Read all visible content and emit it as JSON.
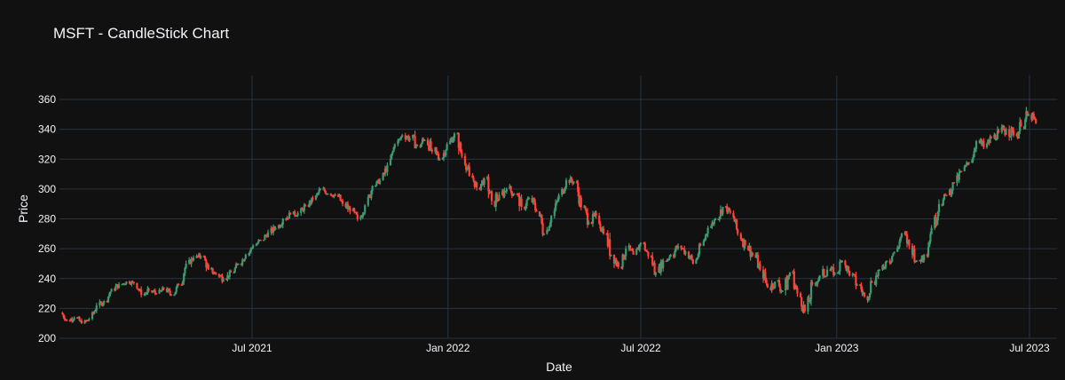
{
  "chart_data": {
    "type": "candlestick",
    "title": "MSFT - CandleStick Chart",
    "xlabel": "Date",
    "ylabel": "Price",
    "ylim": [
      200,
      368
    ],
    "yticks": [
      200,
      220,
      240,
      260,
      280,
      300,
      320,
      340,
      360
    ],
    "xticks": [
      {
        "label": "Jul 2021",
        "date": "2021-07-01"
      },
      {
        "label": "Jan 2022",
        "date": "2022-01-01"
      },
      {
        "label": "Jul 2022",
        "date": "2022-07-01"
      },
      {
        "label": "Jan 2023",
        "date": "2023-01-01"
      },
      {
        "label": "Jul 2023",
        "date": "2023-07-01"
      }
    ],
    "xrange": [
      "2021-01-04",
      "2023-07-28"
    ],
    "grid": true,
    "legend": false,
    "colors": {
      "increasing": "#3D9970",
      "decreasing": "#FF4136",
      "background": "#111111",
      "grid": "#283442",
      "text": "#f2f5fa"
    },
    "weekly_ohlc_note": "Approximate weekly OHLC read from the rendered daily candles",
    "start_week": "2021-01-04",
    "ohlc": [
      [
        217,
        218,
        210,
        212
      ],
      [
        212,
        216,
        209,
        214
      ],
      [
        214,
        216,
        208,
        210
      ],
      [
        210,
        214,
        207,
        213
      ],
      [
        213,
        224,
        212,
        222
      ],
      [
        222,
        226,
        218,
        225
      ],
      [
        225,
        236,
        224,
        233
      ],
      [
        233,
        239,
        230,
        236
      ],
      [
        236,
        240,
        233,
        238
      ],
      [
        238,
        240,
        234,
        237
      ],
      [
        237,
        238,
        227,
        229
      ],
      [
        229,
        235,
        222,
        232
      ],
      [
        232,
        236,
        226,
        230
      ],
      [
        230,
        236,
        228,
        233
      ],
      [
        233,
        236,
        227,
        229
      ],
      [
        229,
        238,
        228,
        236
      ],
      [
        236,
        252,
        235,
        250
      ],
      [
        250,
        256,
        247,
        254
      ],
      [
        254,
        258,
        250,
        255
      ],
      [
        255,
        257,
        244,
        246
      ],
      [
        246,
        250,
        240,
        243
      ],
      [
        243,
        247,
        235,
        240
      ],
      [
        240,
        246,
        238,
        244
      ],
      [
        244,
        252,
        242,
        250
      ],
      [
        250,
        258,
        248,
        256
      ],
      [
        256,
        264,
        254,
        262
      ],
      [
        262,
        268,
        260,
        266
      ],
      [
        266,
        274,
        264,
        271
      ],
      [
        271,
        278,
        268,
        274
      ],
      [
        274,
        282,
        270,
        280
      ],
      [
        280,
        286,
        276,
        283
      ],
      [
        283,
        288,
        280,
        284
      ],
      [
        284,
        292,
        282,
        289
      ],
      [
        289,
        296,
        286,
        293
      ],
      [
        293,
        302,
        292,
        300
      ],
      [
        300,
        302,
        294,
        297
      ],
      [
        297,
        301,
        292,
        296
      ],
      [
        296,
        300,
        286,
        290
      ],
      [
        290,
        298,
        282,
        285
      ],
      [
        285,
        290,
        276,
        280
      ],
      [
        280,
        292,
        278,
        289
      ],
      [
        289,
        304,
        288,
        302
      ],
      [
        302,
        308,
        300,
        306
      ],
      [
        306,
        318,
        304,
        316
      ],
      [
        316,
        332,
        314,
        330
      ],
      [
        330,
        338,
        326,
        336
      ],
      [
        336,
        342,
        330,
        334
      ],
      [
        334,
        344,
        327,
        329
      ],
      [
        329,
        336,
        318,
        333
      ],
      [
        333,
        340,
        322,
        325
      ],
      [
        325,
        336,
        315,
        320
      ],
      [
        320,
        334,
        318,
        330
      ],
      [
        330,
        340,
        326,
        337
      ],
      [
        337,
        338,
        318,
        322
      ],
      [
        322,
        324,
        306,
        309
      ],
      [
        309,
        312,
        298,
        301
      ],
      [
        301,
        310,
        296,
        307
      ],
      [
        307,
        310,
        288,
        292
      ],
      [
        292,
        298,
        272,
        296
      ],
      [
        296,
        306,
        290,
        300
      ],
      [
        300,
        308,
        294,
        297
      ],
      [
        297,
        302,
        285,
        288
      ],
      [
        288,
        296,
        280,
        294
      ],
      [
        294,
        300,
        282,
        285
      ],
      [
        285,
        292,
        266,
        270
      ],
      [
        270,
        284,
        268,
        282
      ],
      [
        282,
        298,
        280,
        296
      ],
      [
        296,
        310,
        294,
        306
      ],
      [
        306,
        312,
        302,
        305
      ],
      [
        305,
        306,
        284,
        288
      ],
      [
        288,
        292,
        274,
        278
      ],
      [
        278,
        286,
        270,
        282
      ],
      [
        282,
        286,
        266,
        270
      ],
      [
        270,
        274,
        250,
        256
      ],
      [
        256,
        264,
        244,
        248
      ],
      [
        248,
        262,
        246,
        260
      ],
      [
        260,
        266,
        252,
        256
      ],
      [
        256,
        268,
        254,
        264
      ],
      [
        264,
        268,
        252,
        255
      ],
      [
        255,
        262,
        240,
        244
      ],
      [
        244,
        256,
        242,
        252
      ],
      [
        252,
        262,
        248,
        256
      ],
      [
        256,
        266,
        250,
        262
      ],
      [
        262,
        268,
        254,
        258
      ],
      [
        258,
        262,
        244,
        250
      ],
      [
        250,
        264,
        248,
        262
      ],
      [
        262,
        276,
        260,
        274
      ],
      [
        274,
        284,
        272,
        280
      ],
      [
        280,
        292,
        278,
        288
      ],
      [
        288,
        292,
        282,
        284
      ],
      [
        284,
        286,
        268,
        270
      ],
      [
        270,
        276,
        258,
        262
      ],
      [
        262,
        270,
        252,
        256
      ],
      [
        256,
        262,
        242,
        246
      ],
      [
        246,
        250,
        230,
        234
      ],
      [
        234,
        244,
        228,
        238
      ],
      [
        238,
        244,
        226,
        232
      ],
      [
        232,
        248,
        220,
        244
      ],
      [
        244,
        250,
        226,
        230
      ],
      [
        230,
        236,
        214,
        218
      ],
      [
        218,
        240,
        214,
        236
      ],
      [
        236,
        248,
        234,
        242
      ],
      [
        242,
        254,
        236,
        246
      ],
      [
        246,
        250,
        238,
        244
      ],
      [
        244,
        258,
        240,
        252
      ],
      [
        252,
        254,
        236,
        242
      ],
      [
        242,
        248,
        230,
        236
      ],
      [
        236,
        240,
        222,
        228
      ],
      [
        228,
        242,
        220,
        238
      ],
      [
        238,
        250,
        232,
        246
      ],
      [
        246,
        258,
        244,
        252
      ],
      [
        252,
        262,
        242,
        258
      ],
      [
        258,
        274,
        256,
        270
      ],
      [
        270,
        276,
        256,
        262
      ],
      [
        262,
        266,
        246,
        252
      ],
      [
        252,
        262,
        244,
        256
      ],
      [
        256,
        276,
        254,
        274
      ],
      [
        274,
        294,
        272,
        290
      ],
      [
        290,
        300,
        286,
        296
      ],
      [
        296,
        306,
        292,
        304
      ],
      [
        304,
        316,
        300,
        312
      ],
      [
        312,
        320,
        306,
        318
      ],
      [
        318,
        334,
        316,
        332
      ],
      [
        332,
        338,
        322,
        328
      ],
      [
        328,
        340,
        324,
        334
      ],
      [
        334,
        342,
        328,
        338
      ],
      [
        338,
        352,
        332,
        340
      ],
      [
        340,
        351,
        332,
        336
      ],
      [
        336,
        348,
        326,
        342
      ],
      [
        342,
        366,
        340,
        350
      ],
      [
        350,
        354,
        340,
        344
      ]
    ]
  }
}
